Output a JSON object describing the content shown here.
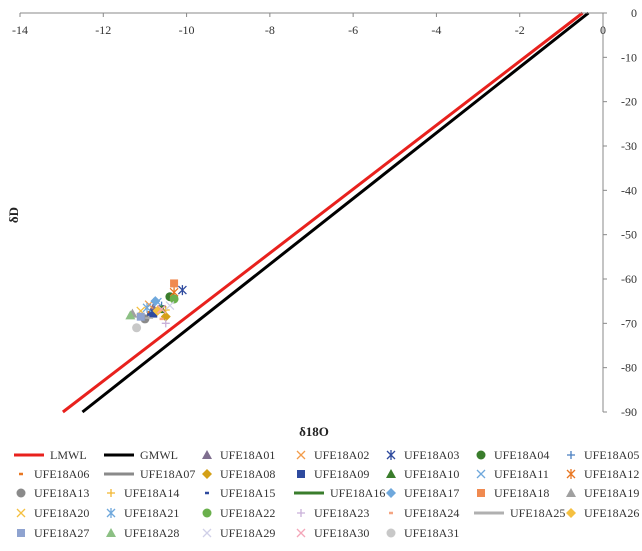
{
  "chart_data": {
    "type": "scatter",
    "title": "",
    "xlabel": "δ18O",
    "ylabel": "δD",
    "xlim": [
      -14,
      0
    ],
    "ylim": [
      -90,
      0
    ],
    "x_ticks": [
      "-14",
      "-12",
      "-10",
      "-8",
      "-6",
      "-4",
      "-2",
      "0"
    ],
    "y_ticks": [
      "0",
      "-10",
      "-20",
      "-30",
      "-40",
      "-50",
      "-60",
      "-70",
      "-80",
      "-90"
    ],
    "grid": false,
    "legend_position": "bottom",
    "lines": [
      {
        "name": "LMWL",
        "color": "#e8211d",
        "points": [
          [
            -12.97,
            -90
          ],
          [
            -0.49,
            0
          ]
        ]
      },
      {
        "name": "GMWL",
        "color": "#000000",
        "points": [
          [
            -12.5,
            -90
          ],
          [
            -0.35,
            0
          ]
        ]
      }
    ],
    "series": [
      {
        "name": "UFE18A01",
        "marker": "triangle",
        "color": "#7f6f8f",
        "x": -10.8,
        "y": -66.5
      },
      {
        "name": "UFE18A02",
        "marker": "x",
        "color": "#f39c4a",
        "x": -10.9,
        "y": -65.8
      },
      {
        "name": "UFE18A03",
        "marker": "asterisk",
        "color": "#2e4a9e",
        "x": -10.1,
        "y": -62.5
      },
      {
        "name": "UFE18A04",
        "marker": "circle",
        "color": "#3a7d2c",
        "x": -10.4,
        "y": -64.0
      },
      {
        "name": "UFE18A05",
        "marker": "plus",
        "color": "#4a7fc1",
        "x": -10.6,
        "y": -66.0
      },
      {
        "name": "UFE18A06",
        "marker": "dash",
        "color": "#e87722",
        "x": -10.9,
        "y": -67.5
      },
      {
        "name": "UFE18A07",
        "marker": "line",
        "color": "#8a8a8a",
        "x": -11.0,
        "y": -68.2
      },
      {
        "name": "UFE18A08",
        "marker": "diamond",
        "color": "#d4a017",
        "x": -10.5,
        "y": -68.5
      },
      {
        "name": "UFE18A09",
        "marker": "square",
        "color": "#2e4a9e",
        "x": -10.8,
        "y": -67.8
      },
      {
        "name": "UFE18A10",
        "marker": "triangle",
        "color": "#3a7d2c",
        "x": -10.6,
        "y": -66.8
      },
      {
        "name": "UFE18A11",
        "marker": "x",
        "color": "#6fa8dc",
        "x": -10.7,
        "y": -65.2
      },
      {
        "name": "UFE18A12",
        "marker": "asterisk",
        "color": "#e87722",
        "x": -10.3,
        "y": -63.0
      },
      {
        "name": "UFE18A13",
        "marker": "circle",
        "color": "#8a8a8a",
        "x": -11.0,
        "y": -69.0
      },
      {
        "name": "UFE18A14",
        "marker": "plus",
        "color": "#f2b632",
        "x": -10.5,
        "y": -67.0
      },
      {
        "name": "UFE18A15",
        "marker": "dash",
        "color": "#2e4a9e",
        "x": -10.9,
        "y": -68.0
      },
      {
        "name": "UFE18A16",
        "marker": "line",
        "color": "#3a7d2c",
        "x": -10.6,
        "y": -66.2
      },
      {
        "name": "UFE18A17",
        "marker": "diamond",
        "color": "#6fa8dc",
        "x": -10.75,
        "y": -65.0
      },
      {
        "name": "UFE18A18",
        "marker": "square",
        "color": "#f08a50",
        "x": -10.3,
        "y": -61.0
      },
      {
        "name": "UFE18A19",
        "marker": "triangle",
        "color": "#a0a0a0",
        "x": -11.3,
        "y": -67.8
      },
      {
        "name": "UFE18A20",
        "marker": "x",
        "color": "#f5c040",
        "x": -11.1,
        "y": -67.2
      },
      {
        "name": "UFE18A21",
        "marker": "asterisk",
        "color": "#6fa8dc",
        "x": -10.95,
        "y": -66.5
      },
      {
        "name": "UFE18A22",
        "marker": "circle",
        "color": "#6ab04c",
        "x": -10.3,
        "y": -64.5
      },
      {
        "name": "UFE18A23",
        "marker": "plus",
        "color": "#c9b1d9",
        "x": -10.5,
        "y": -70.0
      },
      {
        "name": "UFE18A24",
        "marker": "dash",
        "color": "#f4a582",
        "x": -10.6,
        "y": -69.0
      },
      {
        "name": "UFE18A25",
        "marker": "line",
        "color": "#b0b0b0",
        "x": -10.9,
        "y": -68.8
      },
      {
        "name": "UFE18A26",
        "marker": "diamond",
        "color": "#f5c040",
        "x": -10.7,
        "y": -67.2
      },
      {
        "name": "UFE18A27",
        "marker": "square",
        "color": "#8fa3d0",
        "x": -11.1,
        "y": -68.5
      },
      {
        "name": "UFE18A28",
        "marker": "triangle",
        "color": "#8cc084",
        "x": -11.35,
        "y": -68.2
      },
      {
        "name": "UFE18A29",
        "marker": "x",
        "color": "#d0d0e8",
        "x": -10.4,
        "y": -66.0
      },
      {
        "name": "UFE18A30",
        "marker": "x",
        "color": "#f4a6b8",
        "x": -10.6,
        "y": -66.8
      },
      {
        "name": "UFE18A31",
        "marker": "circle",
        "color": "#c8c8c8",
        "x": -11.2,
        "y": -71.0
      }
    ]
  }
}
